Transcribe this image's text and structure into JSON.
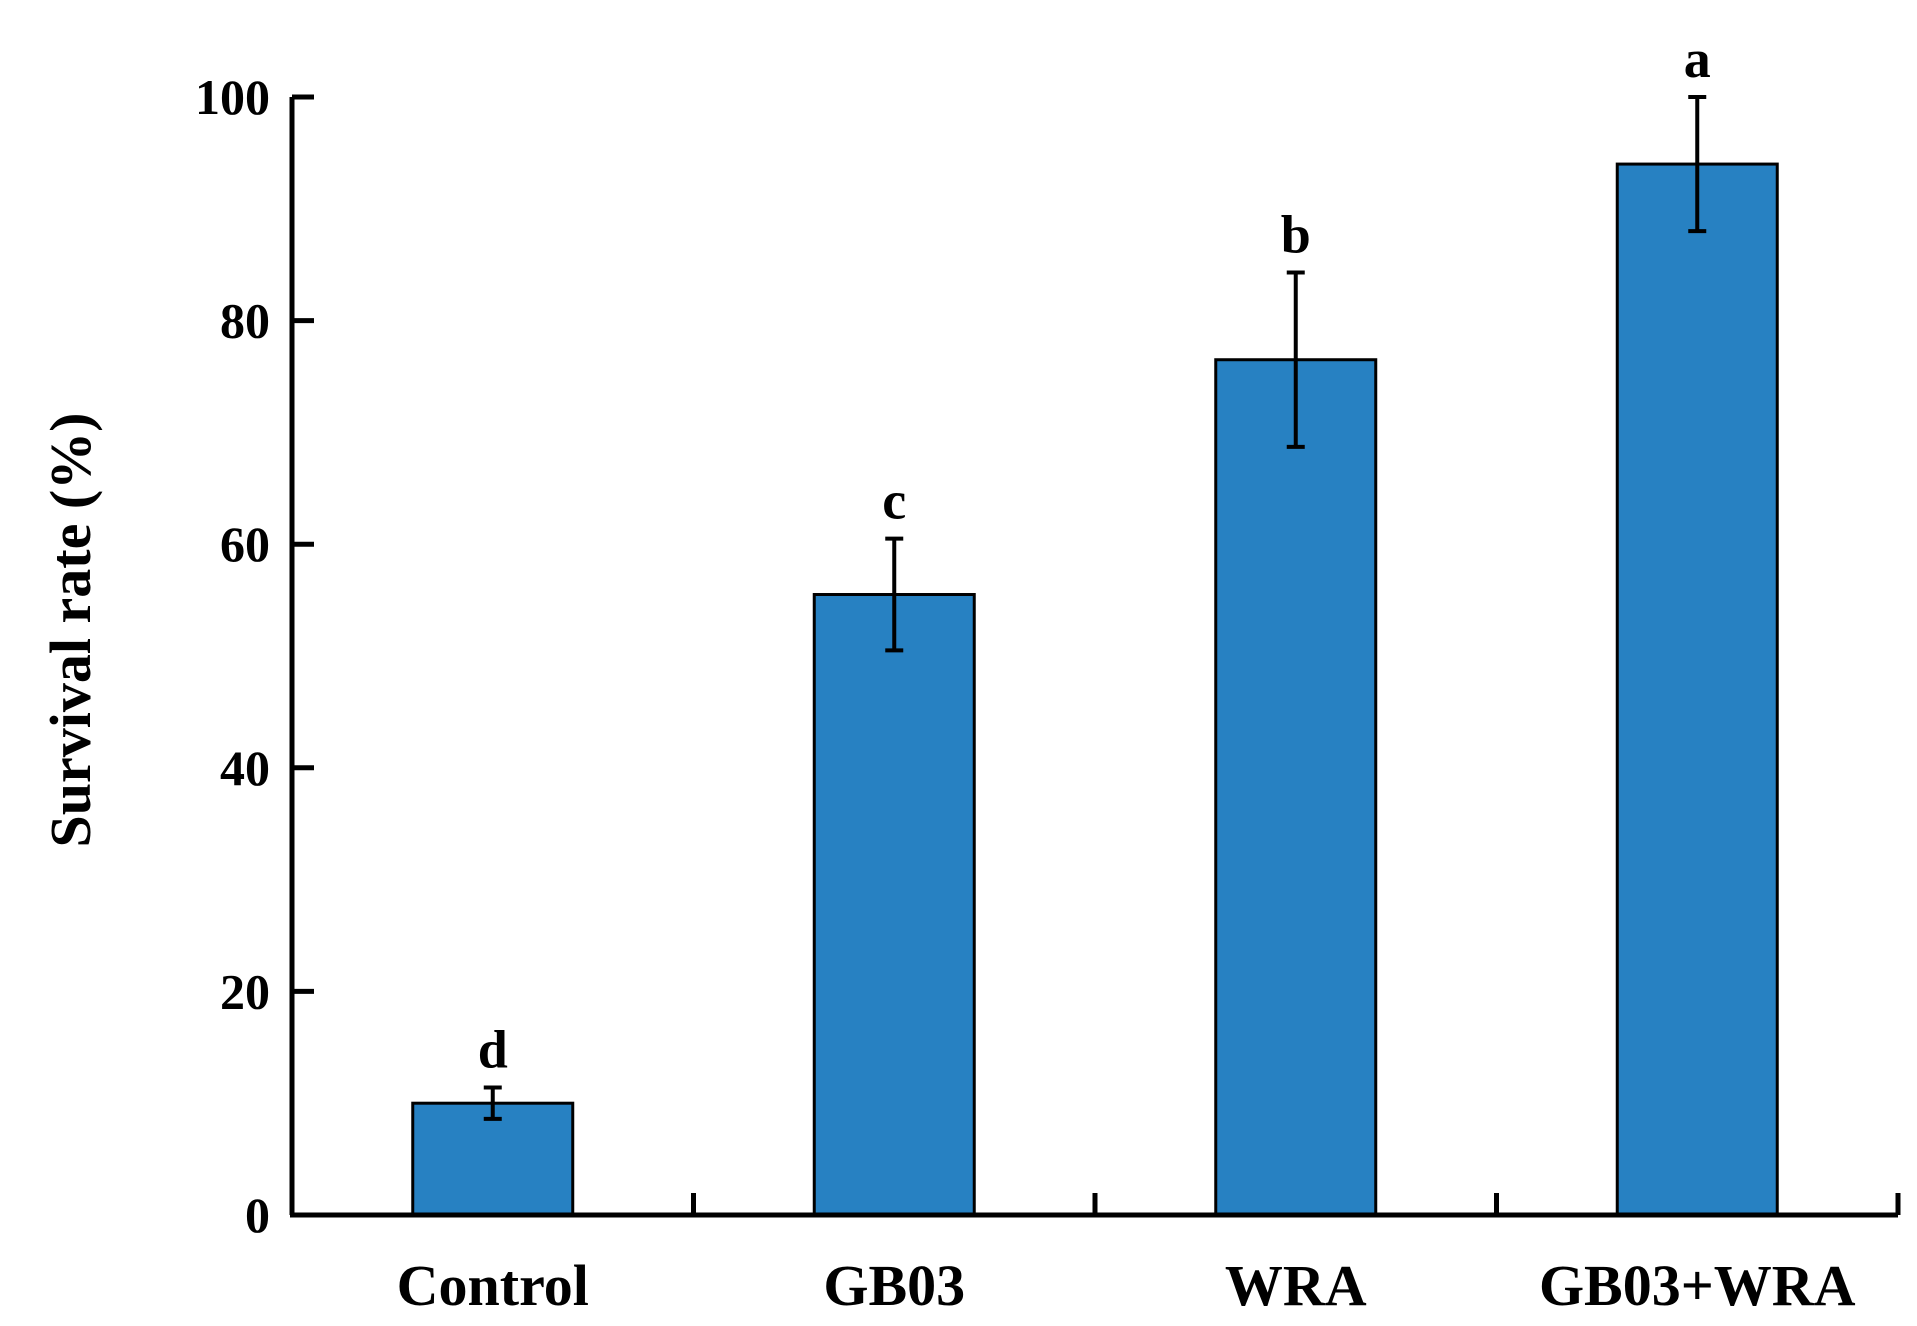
{
  "chart_data": {
    "type": "bar",
    "title": "",
    "xlabel": "",
    "ylabel": "Survival rate (%)",
    "ylim": [
      0,
      100
    ],
    "yticks": [
      0,
      20,
      40,
      60,
      80,
      100
    ],
    "ytick_labels": [
      "0",
      "20",
      "40",
      "60",
      "80",
      "100"
    ],
    "grid": false,
    "legend": "none",
    "categories": [
      "Control",
      "GB03",
      "WRA",
      "GB03+WRA"
    ],
    "values": [
      10,
      55.5,
      76.5,
      94
    ],
    "errors": [
      1.4,
      5,
      7.8,
      6
    ],
    "significance": [
      "d",
      "c",
      "b",
      "a"
    ],
    "bar_color": "#2781C2",
    "bar_edge_color": "#000000"
  }
}
